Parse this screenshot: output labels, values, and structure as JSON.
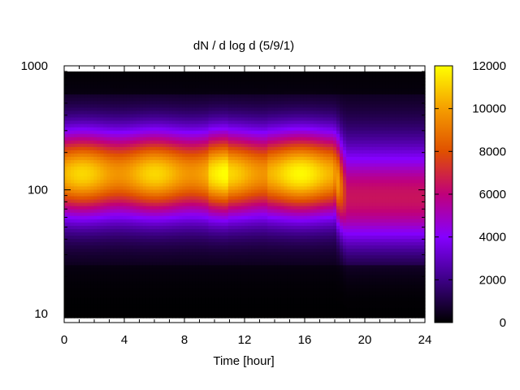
{
  "chart_data": {
    "type": "heatmap",
    "title": "dN / d log d (5/9/1)",
    "xlabel": "Time [hour]",
    "ylabel": "",
    "xlim": [
      0,
      24
    ],
    "ylim": [
      8.5,
      1000
    ],
    "y_scale": "log",
    "x_ticks": [
      "0",
      "4",
      "8",
      "12",
      "16",
      "20",
      "24"
    ],
    "y_ticks": [
      "10",
      "100",
      "1000"
    ],
    "colorbar": {
      "range": [
        0,
        12000
      ],
      "ticks": [
        "0",
        "2000",
        "4000",
        "6000",
        "8000",
        "10000",
        "12000"
      ],
      "palette": "gnuplot default (black-purple-red-orange-yellow)",
      "colors": [
        "#000000",
        "#3d0086",
        "#8500ff",
        "#c0007a",
        "#e05000",
        "#f59e00",
        "#ffff00"
      ]
    },
    "data_extent": {
      "y_min": 9.3,
      "y_max": 900
    },
    "peak": {
      "diameter_center_before_18h": 135,
      "intensity_before_18h": 9000,
      "diameter_center_after_18h": 80,
      "intensity_after_18h": 4500,
      "collapse_time_hour": 18
    },
    "grid": false,
    "legend": "colorbar-right"
  }
}
